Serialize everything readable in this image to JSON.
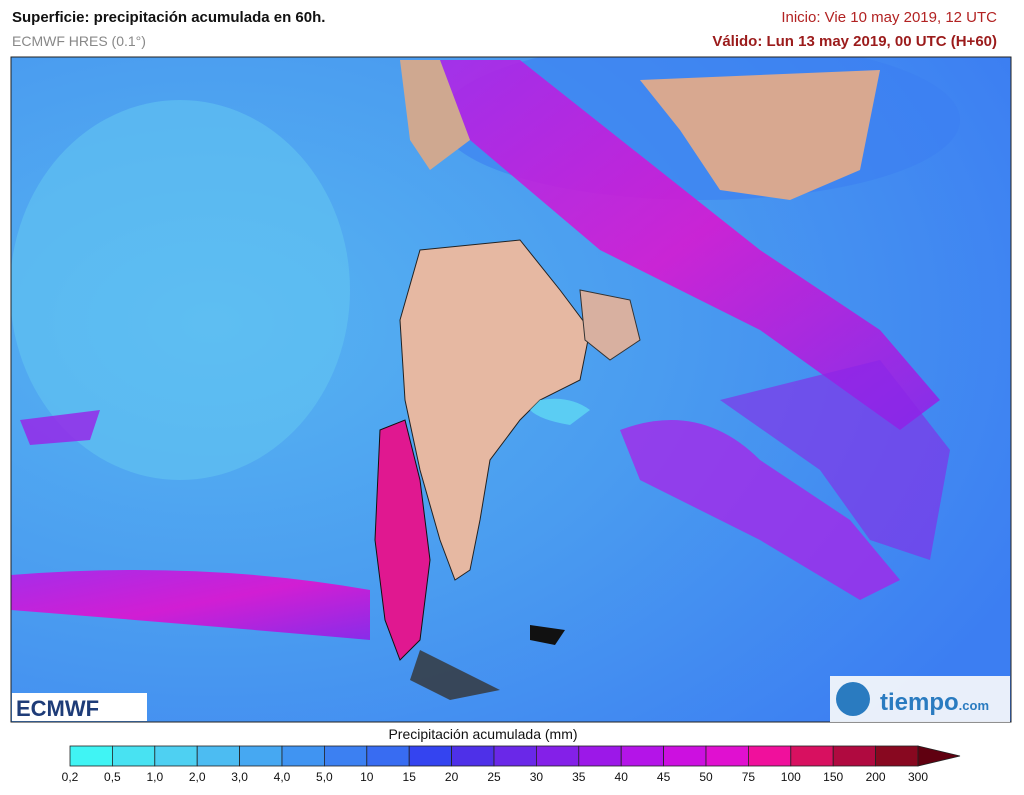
{
  "header": {
    "title": "Superficie: precipitación acumulada en 60h.",
    "model": "ECMWF HRES (0.1°)",
    "init": "Inicio: Vie 10 may 2019, 12 UTC",
    "valid": "Válido: Lun 13 may 2019, 00 UTC (H+60)"
  },
  "logos": {
    "left": "ECMWF",
    "right_name": "tiempo",
    "right_domain": ".com"
  },
  "colorbar": {
    "label": "Precipitación acumulada (mm)",
    "ticks": [
      "0,2",
      "0,5",
      "1,0",
      "2,0",
      "3,0",
      "4,0",
      "5,0",
      "10",
      "15",
      "20",
      "25",
      "30",
      "35",
      "40",
      "45",
      "50",
      "75",
      "100",
      "150",
      "200",
      "300"
    ],
    "colors": [
      "#40f4f4",
      "#48e2f2",
      "#4ed0f2",
      "#4cbcf2",
      "#46a8f2",
      "#4094f2",
      "#3c80f2",
      "#386cf2",
      "#3444f0",
      "#4e30e8",
      "#6a28e8",
      "#8420e8",
      "#9c18e8",
      "#b414e8",
      "#cc10e0",
      "#e010d0",
      "#f0109c",
      "#d81060",
      "#b00a40",
      "#880820"
    ],
    "arrow_color": "#600010"
  }
}
